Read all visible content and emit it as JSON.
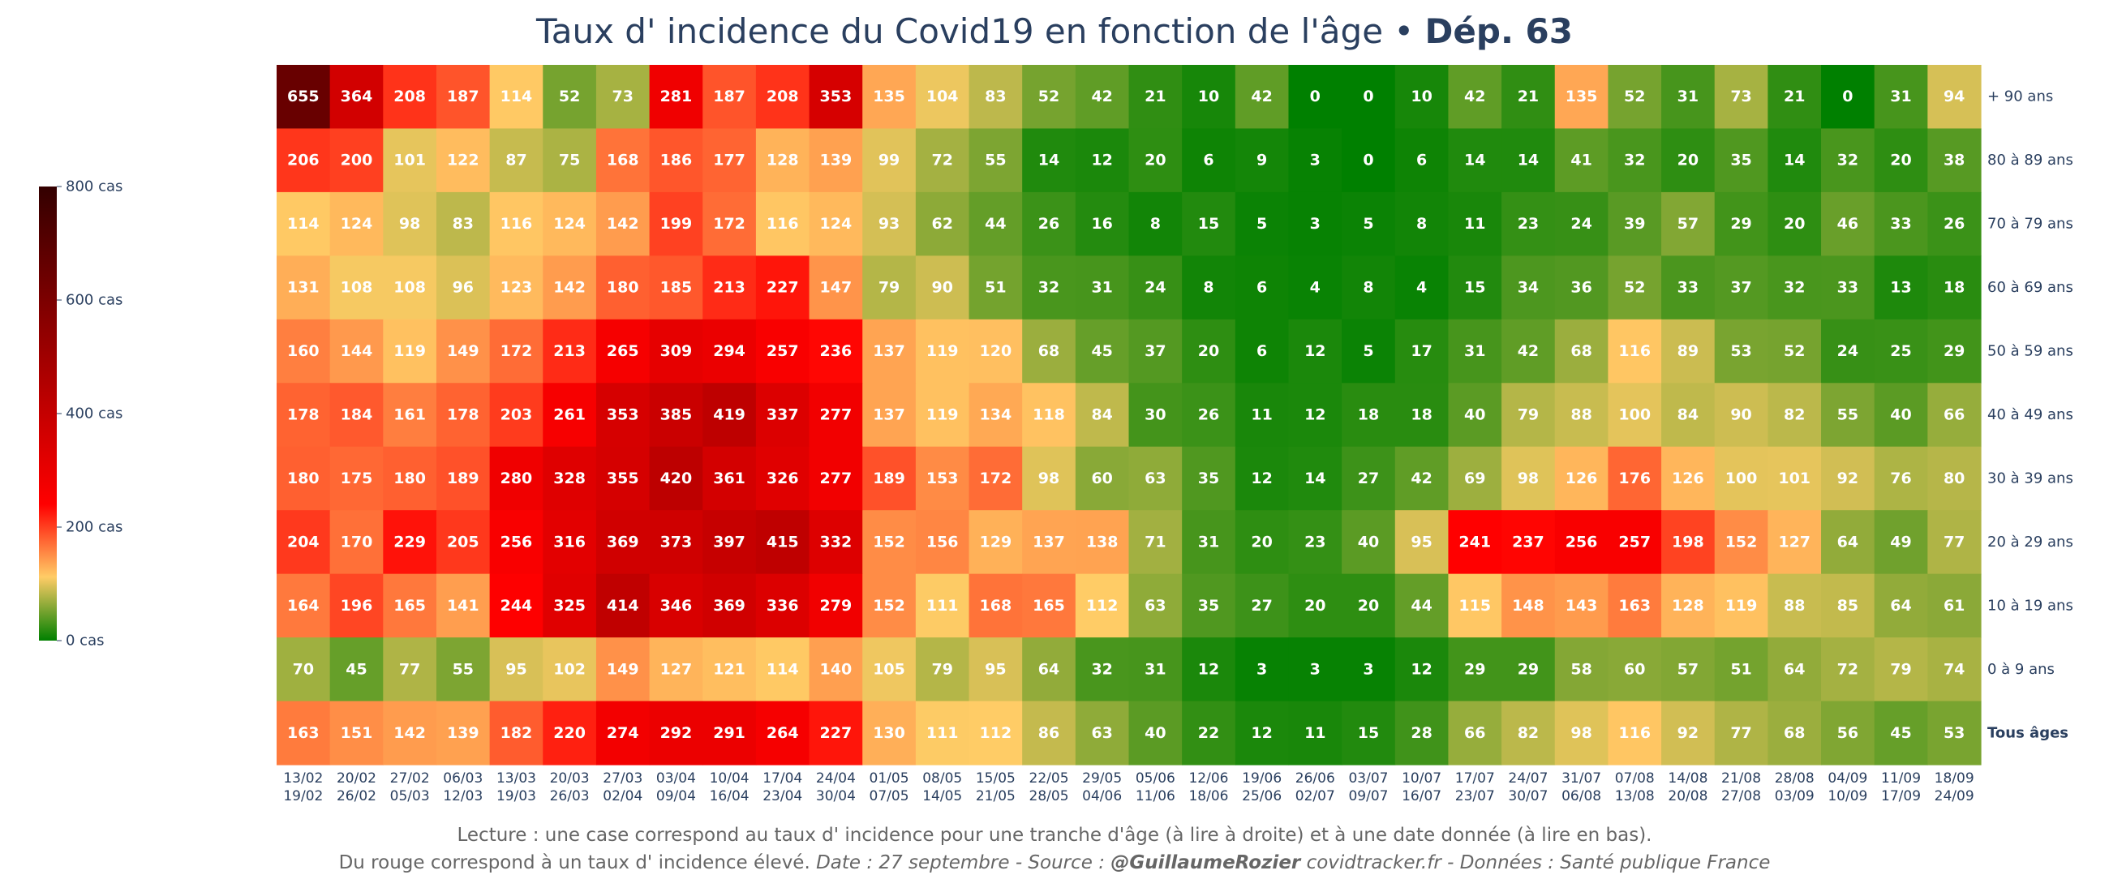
{
  "title": {
    "main": "Taux d' incidence du Covid19 en fonction de l'âge • ",
    "bold": "Dép. 63"
  },
  "colors": {
    "text": "#2a3f5f",
    "footer": "#666666",
    "scale": [
      "#008000",
      "#ffcc66",
      "#ff0000",
      "#330000"
    ]
  },
  "colorbar": {
    "labels": [
      "800 cas",
      "600 cas",
      "400 cas",
      "200 cas",
      "0 cas"
    ],
    "values": [
      800,
      600,
      400,
      200,
      0
    ]
  },
  "chart_data": {
    "type": "heatmap",
    "title": "Taux d' incidence du Covid19 en fonction de l'âge • Dép. 63",
    "zmin": 0,
    "zmax": 800,
    "columns": [
      {
        "start": "13/02",
        "end": "19/02"
      },
      {
        "start": "20/02",
        "end": "26/02"
      },
      {
        "start": "27/02",
        "end": "05/03"
      },
      {
        "start": "06/03",
        "end": "12/03"
      },
      {
        "start": "13/03",
        "end": "19/03"
      },
      {
        "start": "20/03",
        "end": "26/03"
      },
      {
        "start": "27/03",
        "end": "02/04"
      },
      {
        "start": "03/04",
        "end": "09/04"
      },
      {
        "start": "10/04",
        "end": "16/04"
      },
      {
        "start": "17/04",
        "end": "23/04"
      },
      {
        "start": "24/04",
        "end": "30/04"
      },
      {
        "start": "01/05",
        "end": "07/05"
      },
      {
        "start": "08/05",
        "end": "14/05"
      },
      {
        "start": "15/05",
        "end": "21/05"
      },
      {
        "start": "22/05",
        "end": "28/05"
      },
      {
        "start": "29/05",
        "end": "04/06"
      },
      {
        "start": "05/06",
        "end": "11/06"
      },
      {
        "start": "12/06",
        "end": "18/06"
      },
      {
        "start": "19/06",
        "end": "25/06"
      },
      {
        "start": "26/06",
        "end": "02/07"
      },
      {
        "start": "03/07",
        "end": "09/07"
      },
      {
        "start": "10/07",
        "end": "16/07"
      },
      {
        "start": "17/07",
        "end": "23/07"
      },
      {
        "start": "24/07",
        "end": "30/07"
      },
      {
        "start": "31/07",
        "end": "06/08"
      },
      {
        "start": "07/08",
        "end": "13/08"
      },
      {
        "start": "14/08",
        "end": "20/08"
      },
      {
        "start": "21/08",
        "end": "27/08"
      },
      {
        "start": "28/08",
        "end": "03/09"
      },
      {
        "start": "04/09",
        "end": "10/09"
      },
      {
        "start": "11/09",
        "end": "17/09"
      },
      {
        "start": "18/09",
        "end": "24/09"
      }
    ],
    "rows": [
      {
        "label": "+ 90 ans",
        "bold": false,
        "values": [
          655,
          364,
          208,
          187,
          114,
          52,
          73,
          281,
          187,
          208,
          353,
          135,
          104,
          83,
          52,
          42,
          21,
          10,
          42,
          0,
          0,
          10,
          42,
          21,
          135,
          52,
          31,
          73,
          21,
          0,
          31,
          94
        ]
      },
      {
        "label": "80 à 89 ans",
        "bold": false,
        "values": [
          206,
          200,
          101,
          122,
          87,
          75,
          168,
          186,
          177,
          128,
          139,
          99,
          72,
          55,
          14,
          12,
          20,
          6,
          9,
          3,
          0,
          6,
          14,
          14,
          41,
          32,
          20,
          35,
          14,
          32,
          20,
          38
        ]
      },
      {
        "label": "70 à 79 ans",
        "bold": false,
        "values": [
          114,
          124,
          98,
          83,
          116,
          124,
          142,
          199,
          172,
          116,
          124,
          93,
          62,
          44,
          26,
          16,
          8,
          15,
          5,
          3,
          5,
          8,
          11,
          23,
          24,
          39,
          57,
          29,
          20,
          46,
          33,
          26
        ]
      },
      {
        "label": "60 à 69 ans",
        "bold": false,
        "values": [
          131,
          108,
          108,
          96,
          123,
          142,
          180,
          185,
          213,
          227,
          147,
          79,
          90,
          51,
          32,
          31,
          24,
          8,
          6,
          4,
          8,
          4,
          15,
          34,
          36,
          52,
          33,
          37,
          32,
          33,
          13,
          18
        ]
      },
      {
        "label": "50 à 59 ans",
        "bold": false,
        "values": [
          160,
          144,
          119,
          149,
          172,
          213,
          265,
          309,
          294,
          257,
          236,
          137,
          119,
          120,
          68,
          45,
          37,
          20,
          6,
          12,
          5,
          17,
          31,
          42,
          68,
          116,
          89,
          53,
          52,
          24,
          25,
          29
        ]
      },
      {
        "label": "40 à 49 ans",
        "bold": false,
        "values": [
          178,
          184,
          161,
          178,
          203,
          261,
          353,
          385,
          419,
          337,
          277,
          137,
          119,
          134,
          118,
          84,
          30,
          26,
          11,
          12,
          18,
          18,
          40,
          79,
          88,
          100,
          84,
          90,
          82,
          55,
          40,
          66
        ]
      },
      {
        "label": "30 à 39 ans",
        "bold": false,
        "values": [
          180,
          175,
          180,
          189,
          280,
          328,
          355,
          420,
          361,
          326,
          277,
          189,
          153,
          172,
          98,
          60,
          63,
          35,
          12,
          14,
          27,
          42,
          69,
          98,
          126,
          176,
          126,
          100,
          101,
          92,
          76,
          80
        ]
      },
      {
        "label": "20 à 29 ans",
        "bold": false,
        "values": [
          204,
          170,
          229,
          205,
          256,
          316,
          369,
          373,
          397,
          415,
          332,
          152,
          156,
          129,
          137,
          138,
          71,
          31,
          20,
          23,
          40,
          95,
          241,
          237,
          256,
          257,
          198,
          152,
          127,
          64,
          49,
          77
        ]
      },
      {
        "label": "10 à 19 ans",
        "bold": false,
        "values": [
          164,
          196,
          165,
          141,
          244,
          325,
          414,
          346,
          369,
          336,
          279,
          152,
          111,
          168,
          165,
          112,
          63,
          35,
          27,
          20,
          20,
          44,
          115,
          148,
          143,
          163,
          128,
          119,
          88,
          85,
          64,
          61
        ]
      },
      {
        "label": "0 à 9 ans",
        "bold": false,
        "values": [
          70,
          45,
          77,
          55,
          95,
          102,
          149,
          127,
          121,
          114,
          140,
          105,
          79,
          95,
          64,
          32,
          31,
          12,
          3,
          3,
          3,
          12,
          29,
          29,
          58,
          60,
          57,
          51,
          64,
          72,
          79,
          74
        ]
      },
      {
        "label": "Tous âges",
        "bold": true,
        "values": [
          163,
          151,
          142,
          139,
          182,
          220,
          274,
          292,
          291,
          264,
          227,
          130,
          111,
          112,
          86,
          63,
          40,
          22,
          12,
          11,
          15,
          28,
          66,
          82,
          98,
          116,
          92,
          77,
          68,
          56,
          45,
          53
        ]
      }
    ]
  },
  "footer": {
    "line1": "Lecture : une case correspond au taux d' incidence pour une tranche d'âge (à lire à droite) et à une date donnée (à lire en bas).",
    "line2_plain": "Du rouge correspond à un taux d' incidence élevé.  ",
    "line2_date": "Date : 27 septembre - Source : ",
    "line2_author": "@GuillaumeRozier",
    "line2_rest": " covidtracker.fr - Données : Santé publique France"
  }
}
